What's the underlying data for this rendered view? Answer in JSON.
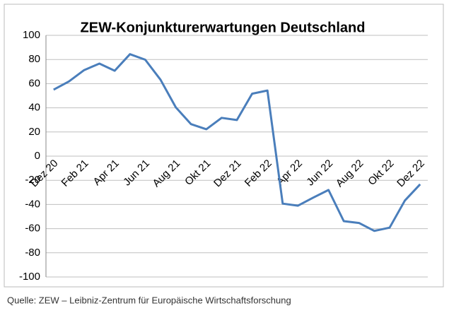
{
  "chart_data": {
    "type": "line",
    "title": "ZEW-Konjunkturerwartungen Deutschland",
    "source": "Quelle: ZEW – Leibniz-Zentrum für Europäische Wirtschaftsforschung",
    "categories": [
      "Dez 20",
      null,
      "Feb 21",
      null,
      "Apr 21",
      null,
      "Jun 21",
      null,
      "Aug 21",
      null,
      "Okt 21",
      null,
      "Dez 21",
      null,
      "Feb 22",
      null,
      "Apr 22",
      null,
      "Jun 22",
      null,
      "Aug 22",
      null,
      "Okt 22",
      null,
      "Dez 22"
    ],
    "values": [
      55,
      61.8,
      71.2,
      76.6,
      70.7,
      84.4,
      79.8,
      63.3,
      40.4,
      26.5,
      22.3,
      31.7,
      29.9,
      51.7,
      54.3,
      -39.3,
      -41.0,
      -34.3,
      -28.0,
      -53.8,
      -55.3,
      -61.9,
      -59.2,
      -36.7,
      -23.3
    ],
    "color": "#4a7ebb",
    "ylim": [
      -100,
      100
    ],
    "yticks": [
      -100,
      -80,
      -60,
      -40,
      -20,
      0,
      20,
      40,
      60,
      80,
      100
    ],
    "grid": true
  }
}
